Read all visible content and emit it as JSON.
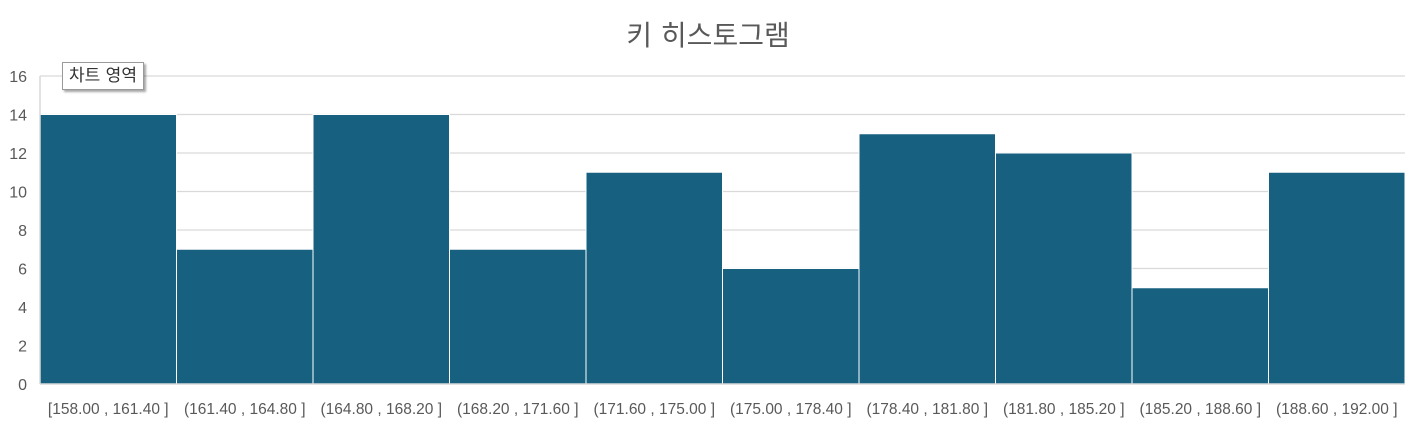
{
  "chart_data": {
    "type": "bar",
    "title": "키 히스토그램",
    "categories": [
      "[158.00 , 161.40 ]",
      "(161.40 , 164.80 ]",
      "(164.80 , 168.20 ]",
      "(168.20 , 171.60 ]",
      "(171.60 , 175.00 ]",
      "(175.00 , 178.40 ]",
      "(178.40 , 181.80 ]",
      "(181.80 , 185.20 ]",
      "(185.20 , 188.60 ]",
      "(188.60 , 192.00 ]"
    ],
    "values": [
      14,
      7,
      14,
      7,
      11,
      6,
      13,
      12,
      5,
      11
    ],
    "ylim": [
      0,
      16
    ],
    "yticks": [
      0,
      2,
      4,
      6,
      8,
      10,
      12,
      14,
      16
    ],
    "grid": true,
    "legend": "none",
    "bar_color": "#17607f",
    "grid_color": "#d9d9d9"
  },
  "tooltip": {
    "label": "차트 영역"
  }
}
